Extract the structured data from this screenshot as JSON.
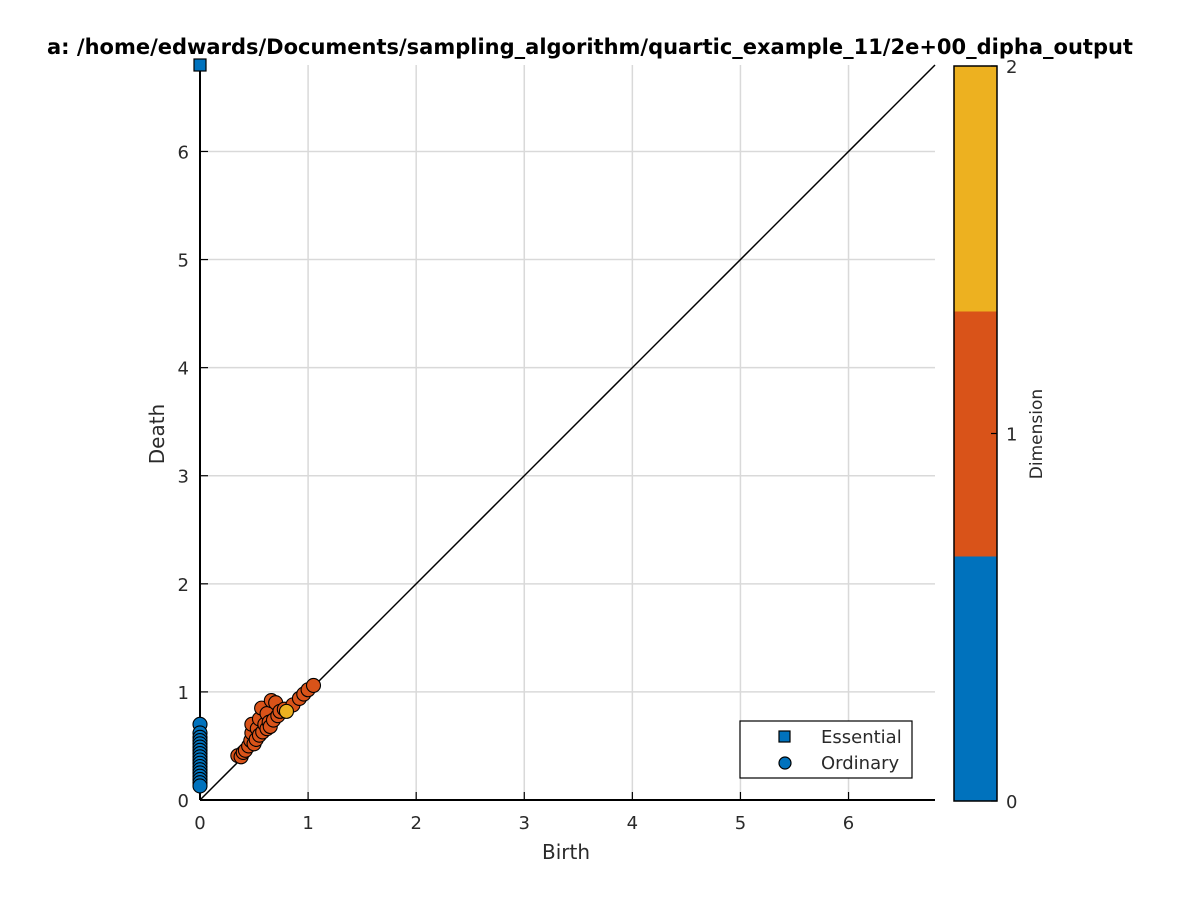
{
  "chart_data": {
    "type": "scatter",
    "title": "a: /home/edwards/Documents/sampling_algorithm/quartic_example_11/2e+00_dipha_output",
    "xlabel": "Birth",
    "ylabel": "Death",
    "xlim": [
      0,
      6.8
    ],
    "ylim": [
      0,
      6.8
    ],
    "x_ticks": [
      "0",
      "1",
      "2",
      "3",
      "4",
      "5",
      "6"
    ],
    "y_ticks": [
      "0",
      "1",
      "2",
      "3",
      "4",
      "5",
      "6"
    ],
    "grid": true,
    "diagonal": true,
    "colorbar": {
      "label": "Dimension",
      "range": [
        0,
        2
      ],
      "ticks": [
        "0",
        "1",
        "2"
      ],
      "colors": [
        "#0072bd",
        "#d95319",
        "#edb120"
      ]
    },
    "legend": {
      "placement": "bottom-right",
      "entries": [
        {
          "label": "Essential",
          "marker": "square"
        },
        {
          "label": "Ordinary",
          "marker": "circle"
        }
      ]
    },
    "series": [
      {
        "name": "Essential",
        "marker": "square",
        "points": [
          [
            0,
            6.8,
            0
          ]
        ]
      },
      {
        "name": "Ordinary",
        "marker": "circle",
        "points": [
          [
            0,
            0.7,
            0
          ],
          [
            0,
            0.62,
            0
          ],
          [
            0,
            0.58,
            0
          ],
          [
            0,
            0.55,
            0
          ],
          [
            0,
            0.52,
            0
          ],
          [
            0,
            0.49,
            0
          ],
          [
            0,
            0.46,
            0
          ],
          [
            0,
            0.43,
            0
          ],
          [
            0,
            0.4,
            0
          ],
          [
            0,
            0.37,
            0
          ],
          [
            0,
            0.34,
            0
          ],
          [
            0,
            0.31,
            0
          ],
          [
            0,
            0.28,
            0
          ],
          [
            0,
            0.25,
            0
          ],
          [
            0,
            0.22,
            0
          ],
          [
            0,
            0.19,
            0
          ],
          [
            0,
            0.16,
            0
          ],
          [
            0,
            0.13,
            0
          ],
          [
            0.35,
            0.41,
            1
          ],
          [
            0.38,
            0.4,
            1
          ],
          [
            0.4,
            0.44,
            1
          ],
          [
            0.42,
            0.46,
            1
          ],
          [
            0.45,
            0.5,
            1
          ],
          [
            0.47,
            0.55,
            1
          ],
          [
            0.48,
            0.62,
            1
          ],
          [
            0.48,
            0.7,
            1
          ],
          [
            0.5,
            0.52,
            1
          ],
          [
            0.52,
            0.56,
            1
          ],
          [
            0.53,
            0.66,
            1
          ],
          [
            0.55,
            0.6,
            1
          ],
          [
            0.55,
            0.75,
            1
          ],
          [
            0.57,
            0.85,
            1
          ],
          [
            0.58,
            0.63,
            1
          ],
          [
            0.6,
            0.7,
            1
          ],
          [
            0.62,
            0.66,
            1
          ],
          [
            0.62,
            0.8,
            1
          ],
          [
            0.64,
            0.72,
            1
          ],
          [
            0.65,
            0.68,
            1
          ],
          [
            0.66,
            0.92,
            1
          ],
          [
            0.68,
            0.74,
            1
          ],
          [
            0.7,
            0.9,
            1
          ],
          [
            0.72,
            0.78,
            1
          ],
          [
            0.74,
            0.82,
            1
          ],
          [
            0.78,
            0.84,
            1
          ],
          [
            0.86,
            0.88,
            1
          ],
          [
            0.92,
            0.94,
            1
          ],
          [
            0.96,
            0.98,
            1
          ],
          [
            1.0,
            1.02,
            1
          ],
          [
            1.05,
            1.06,
            1
          ],
          [
            0.8,
            0.82,
            2
          ]
        ]
      }
    ]
  }
}
